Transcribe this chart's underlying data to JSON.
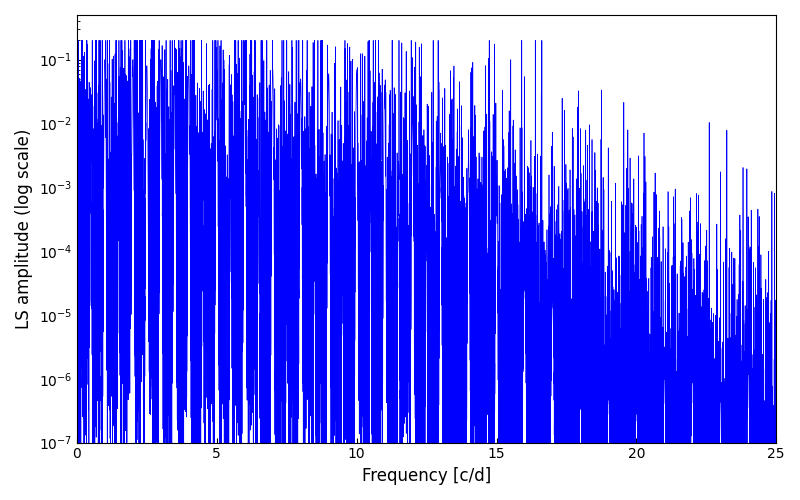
{
  "xlabel": "Frequency [c/d]",
  "ylabel": "LS amplitude (log scale)",
  "xlim": [
    0,
    25
  ],
  "ylim": [
    1e-07,
    0.5
  ],
  "line_color": "#0000ff",
  "line_width": 0.5,
  "yscale": "log",
  "yticks": [
    1e-07,
    1e-06,
    1e-05,
    0.0001,
    0.001,
    0.01,
    0.1
  ],
  "xticks": [
    0,
    5,
    10,
    15,
    20,
    25
  ],
  "figsize": [
    8.0,
    5.0
  ],
  "dpi": 100,
  "seed": 12345,
  "n_points": 12000,
  "freq_max": 25.0,
  "background_color": "#ffffff"
}
